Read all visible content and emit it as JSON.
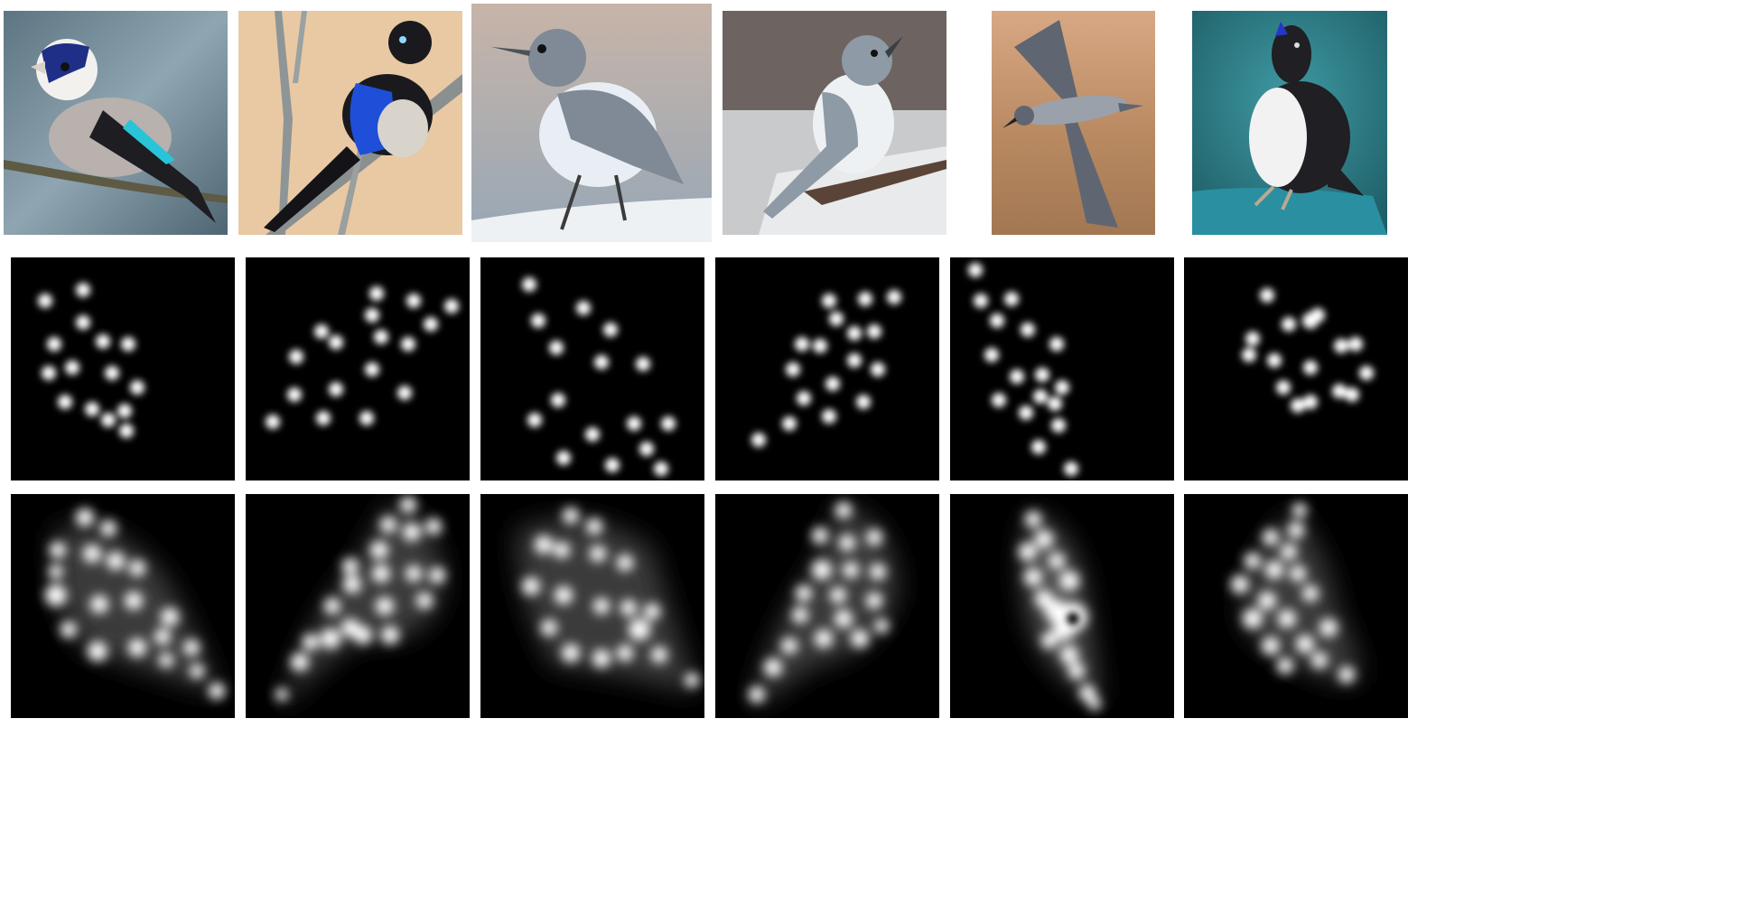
{
  "figure": {
    "background": "#ffffff",
    "rows": [
      {
        "id": "photos",
        "kind": "bird-photographs"
      },
      {
        "id": "point-heatmaps",
        "kind": "keypoint-heatmaps"
      },
      {
        "id": "density-heatmaps",
        "kind": "density-heatmaps"
      }
    ],
    "columns": [
      {
        "subject": "goldfinch-on-branch",
        "photo_bg": "#6f8796",
        "bird_body": "#b9b1ad",
        "bird_accent": "#2ac4d8"
      },
      {
        "subject": "blue-black-bird-on-twigs",
        "photo_bg": "#e9c9a3",
        "bird_body": "#1a1a1e",
        "bird_accent": "#1f4fd8"
      },
      {
        "subject": "grey-wren-on-rock",
        "photo_bg": "#b8aaa2",
        "bird_body": "#7f8a96",
        "bird_accent": "#e8eef4"
      },
      {
        "subject": "grey-wren-on-concrete",
        "photo_bg": "#6d6461",
        "bird_body": "#8e9aa6",
        "bird_accent": "#eef1f3"
      },
      {
        "subject": "albatross-in-flight",
        "photo_bg": "#b98a62",
        "bird_body": "#5f6672",
        "bird_accent": "#9aa1ab"
      },
      {
        "subject": "auk-on-teal-rock",
        "photo_bg": "#2f7f88",
        "bird_body": "#1f1f24",
        "bird_accent": "#f2f2f2"
      }
    ]
  },
  "colors": {
    "heatmap_bg": "#000000",
    "heatmap_glow": "#ffffff"
  }
}
